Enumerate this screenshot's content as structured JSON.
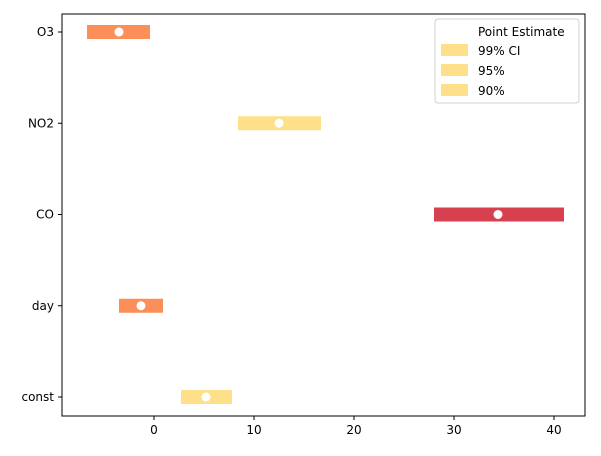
{
  "chart_data": {
    "type": "interval",
    "categories": [
      "O3",
      "NO2",
      "CO",
      "day",
      "const"
    ],
    "x_ticks": [
      0,
      10,
      20,
      30,
      40
    ],
    "xlim": [
      -9.2,
      43.1
    ],
    "legend": {
      "placement": "top-right",
      "entries": [
        "Point Estimate",
        "99% CI",
        "95%",
        "90%"
      ]
    },
    "rows": [
      {
        "category": "O3",
        "estimate": -3.5,
        "ci99": [
          -6.7,
          -0.4
        ],
        "ci95": [
          -6.2,
          -0.9
        ],
        "ci90": [
          -5.9,
          -1.2
        ],
        "color": "#fc8e59"
      },
      {
        "category": "NO2",
        "estimate": 12.5,
        "ci99": [
          8.4,
          16.7
        ],
        "ci95": [
          9.2,
          15.9
        ],
        "ci90": [
          9.6,
          15.4
        ],
        "color": "#fee08b"
      },
      {
        "category": "CO",
        "estimate": 34.4,
        "ci99": [
          28.0,
          41.0
        ],
        "ci95": [
          29.2,
          39.7
        ],
        "ci90": [
          29.9,
          39.0
        ],
        "color": "#d7404e"
      },
      {
        "category": "day",
        "estimate": -1.3,
        "ci99": [
          -3.5,
          0.9
        ],
        "ci95": [
          -3.1,
          0.5
        ],
        "ci90": [
          -2.9,
          0.3
        ],
        "color": "#fc8e59"
      },
      {
        "category": "const",
        "estimate": 5.2,
        "ci99": [
          2.7,
          7.8
        ],
        "ci95": [
          3.2,
          7.3
        ],
        "ci90": [
          3.5,
          7.0
        ],
        "color": "#fee08b"
      }
    ],
    "legend_swatch_color": "#fee08b",
    "grid": false
  }
}
